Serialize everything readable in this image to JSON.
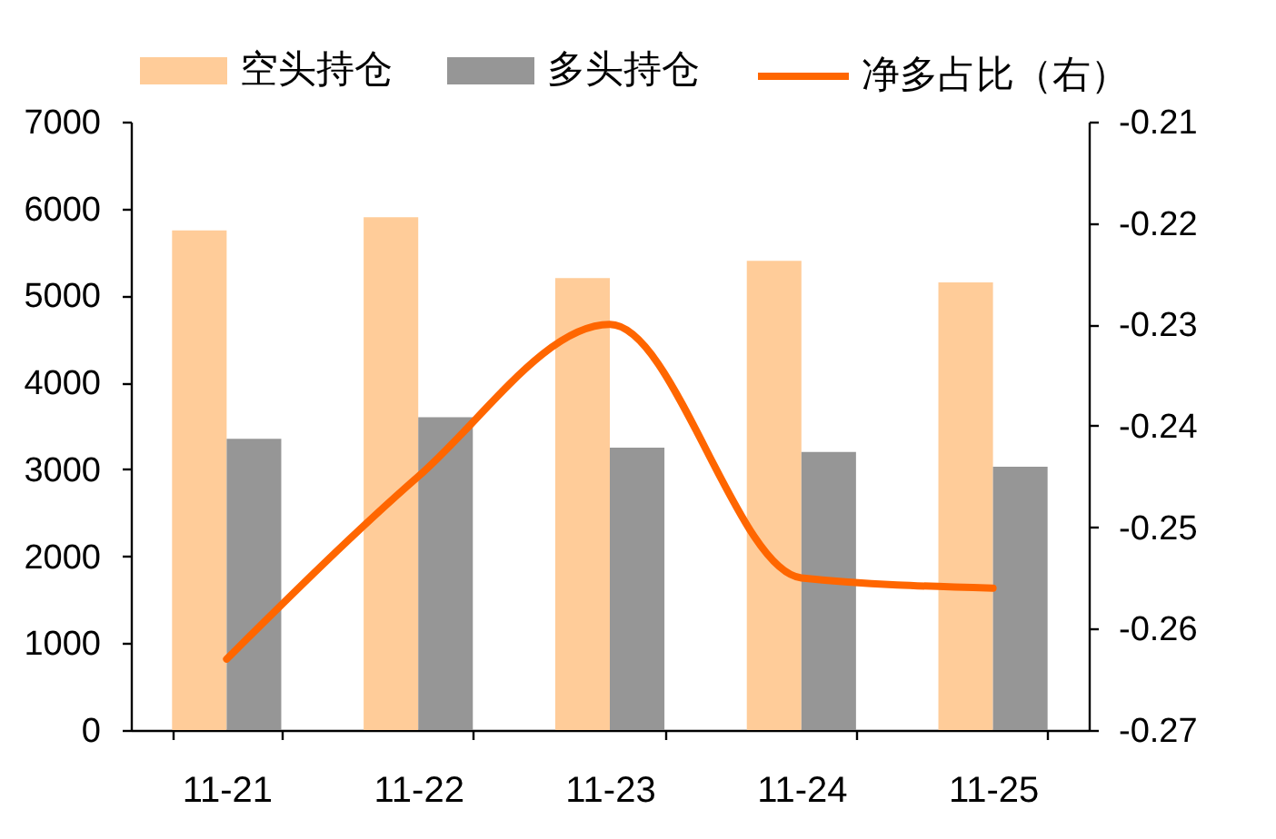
{
  "chart_data": {
    "type": "bar",
    "categories": [
      "11-21",
      "11-22",
      "11-23",
      "11-24",
      "11-25"
    ],
    "series": [
      {
        "name": "空头持仓",
        "color": "#ffcc99",
        "values": [
          5750,
          5900,
          5200,
          5400,
          5150
        ]
      },
      {
        "name": "多头持仓",
        "color": "#969696",
        "values": [
          3350,
          3600,
          3250,
          3200,
          3030
        ]
      },
      {
        "name": "净多占比（右）",
        "type": "line",
        "axis": "y2",
        "color": "#ff6600",
        "values": [
          -0.263,
          -0.245,
          -0.23,
          -0.255,
          -0.256
        ]
      }
    ],
    "ylim": [
      0,
      7000
    ],
    "yticks": [
      0,
      1000,
      2000,
      3000,
      4000,
      5000,
      6000,
      7000
    ],
    "y2lim": [
      -0.27,
      -0.21
    ],
    "y2ticks": [
      -0.27,
      -0.26,
      -0.25,
      -0.24,
      -0.23,
      -0.22,
      -0.21
    ],
    "grid": false,
    "legend": "top",
    "marker": "none"
  }
}
